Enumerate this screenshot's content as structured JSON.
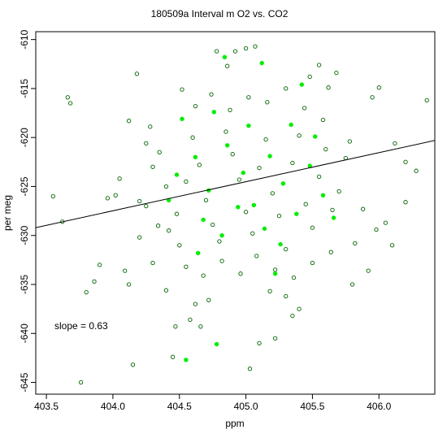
{
  "chart_data": {
    "type": "scatter",
    "title": "180509a   Interval m O2 vs. CO2",
    "xlabel": "ppm",
    "ylabel": "per meg",
    "xlim": [
      403.42,
      406.42
    ],
    "ylim": [
      -646.2,
      -609.2
    ],
    "xticks": [
      "403.5",
      "404.0",
      "404.5",
      "405.0",
      "405.5",
      "406.0"
    ],
    "yticks": [
      "-610",
      "-615",
      "-620",
      "-625",
      "-630",
      "-635",
      "-640",
      "-645"
    ],
    "annotation": "slope =  0.63",
    "fit_line": {
      "x": [
        403.42,
        406.42
      ],
      "y": [
        -629.2,
        -620.3
      ]
    },
    "grid": false,
    "colors": {
      "series_a": "#006400",
      "series_b": "#00ee00",
      "fit": "#000000"
    },
    "series": [
      {
        "marker": "open-circle",
        "color": "#006400",
        "points": [
          [
            403.55,
            -626.0
          ],
          [
            403.62,
            -628.6
          ],
          [
            403.66,
            -615.9
          ],
          [
            403.68,
            -616.5
          ],
          [
            403.76,
            -645.0
          ],
          [
            403.8,
            -635.8
          ],
          [
            403.86,
            -634.7
          ],
          [
            403.9,
            -633.0
          ],
          [
            403.96,
            -626.2
          ],
          [
            404.02,
            -625.9
          ],
          [
            404.05,
            -624.2
          ],
          [
            404.09,
            -633.6
          ],
          [
            404.12,
            -635.0
          ],
          [
            404.15,
            -643.2
          ],
          [
            404.18,
            -613.5
          ],
          [
            404.12,
            -618.3
          ],
          [
            404.2,
            -626.5
          ],
          [
            404.25,
            -620.6
          ],
          [
            404.3,
            -632.8
          ],
          [
            404.34,
            -629.0
          ],
          [
            404.4,
            -635.6
          ],
          [
            404.45,
            -642.4
          ],
          [
            404.47,
            -639.3
          ],
          [
            404.5,
            -631.0
          ],
          [
            404.52,
            -615.1
          ],
          [
            404.58,
            -638.6
          ],
          [
            404.62,
            -637.0
          ],
          [
            404.66,
            -639.3
          ],
          [
            404.72,
            -636.6
          ],
          [
            404.78,
            -611.2
          ],
          [
            404.86,
            -612.7
          ],
          [
            404.92,
            -611.2
          ],
          [
            405.0,
            -610.9
          ],
          [
            405.07,
            -610.7
          ],
          [
            405.03,
            -643.6
          ],
          [
            405.1,
            -641.0
          ],
          [
            405.18,
            -635.7
          ],
          [
            405.22,
            -640.5
          ],
          [
            405.3,
            -636.2
          ],
          [
            405.35,
            -638.2
          ],
          [
            405.4,
            -637.5
          ],
          [
            405.48,
            -613.8
          ],
          [
            405.55,
            -612.6
          ],
          [
            405.62,
            -614.9
          ],
          [
            405.68,
            -613.4
          ],
          [
            405.75,
            -622.1
          ],
          [
            405.82,
            -630.8
          ],
          [
            405.88,
            -627.3
          ],
          [
            405.95,
            -615.9
          ],
          [
            406.0,
            -614.9
          ],
          [
            406.05,
            -628.7
          ],
          [
            406.12,
            -620.6
          ],
          [
            406.2,
            -622.5
          ],
          [
            406.28,
            -623.4
          ],
          [
            406.36,
            -616.2
          ],
          [
            406.1,
            -631.0
          ],
          [
            405.98,
            -629.4
          ],
          [
            406.2,
            -626.6
          ],
          [
            405.92,
            -633.6
          ],
          [
            405.8,
            -635.0
          ],
          [
            404.25,
            -627.0
          ],
          [
            404.3,
            -623.0
          ],
          [
            404.35,
            -621.5
          ],
          [
            404.4,
            -625.0
          ],
          [
            404.42,
            -629.5
          ],
          [
            404.48,
            -627.8
          ],
          [
            404.55,
            -624.5
          ],
          [
            404.6,
            -620.0
          ],
          [
            404.65,
            -622.8
          ],
          [
            404.7,
            -626.4
          ],
          [
            404.75,
            -628.9
          ],
          [
            404.8,
            -630.6
          ],
          [
            404.85,
            -619.4
          ],
          [
            404.9,
            -621.7
          ],
          [
            404.95,
            -624.3
          ],
          [
            405.0,
            -627.6
          ],
          [
            405.05,
            -629.8
          ],
          [
            405.1,
            -623.1
          ],
          [
            405.15,
            -620.2
          ],
          [
            405.2,
            -625.7
          ],
          [
            405.25,
            -628.0
          ],
          [
            405.3,
            -631.4
          ],
          [
            405.35,
            -622.6
          ],
          [
            405.4,
            -619.8
          ],
          [
            405.45,
            -626.8
          ],
          [
            405.5,
            -629.2
          ],
          [
            405.55,
            -624.0
          ],
          [
            405.6,
            -621.2
          ],
          [
            405.65,
            -627.4
          ],
          [
            405.7,
            -625.5
          ],
          [
            404.55,
            -633.2
          ],
          [
            404.68,
            -634.1
          ],
          [
            404.82,
            -632.6
          ],
          [
            404.96,
            -633.9
          ],
          [
            405.08,
            -632.1
          ],
          [
            405.22,
            -633.5
          ],
          [
            405.36,
            -634.3
          ],
          [
            405.5,
            -632.8
          ],
          [
            405.64,
            -631.7
          ],
          [
            404.62,
            -616.8
          ],
          [
            404.74,
            -615.6
          ],
          [
            404.88,
            -617.2
          ],
          [
            405.02,
            -615.9
          ],
          [
            405.16,
            -616.4
          ],
          [
            405.3,
            -615.0
          ],
          [
            405.44,
            -617.0
          ],
          [
            405.58,
            -618.2
          ],
          [
            404.2,
            -630.2
          ],
          [
            404.28,
            -618.9
          ],
          [
            405.78,
            -620.4
          ]
        ]
      },
      {
        "marker": "filled-circle",
        "color": "#00ee00",
        "points": [
          [
            404.55,
            -642.7
          ],
          [
            404.78,
            -641.1
          ],
          [
            404.84,
            -611.8
          ],
          [
            405.12,
            -612.4
          ],
          [
            405.42,
            -614.6
          ],
          [
            404.62,
            -622.0
          ],
          [
            404.72,
            -625.4
          ],
          [
            404.86,
            -620.8
          ],
          [
            404.98,
            -623.6
          ],
          [
            405.06,
            -626.9
          ],
          [
            405.18,
            -621.9
          ],
          [
            405.28,
            -624.7
          ],
          [
            405.38,
            -627.8
          ],
          [
            405.48,
            -622.9
          ],
          [
            405.58,
            -625.9
          ],
          [
            404.68,
            -628.4
          ],
          [
            404.82,
            -630.0
          ],
          [
            404.94,
            -627.1
          ],
          [
            405.14,
            -629.3
          ],
          [
            405.26,
            -630.9
          ],
          [
            404.48,
            -623.8
          ],
          [
            404.52,
            -618.1
          ],
          [
            405.34,
            -618.7
          ],
          [
            405.52,
            -619.9
          ],
          [
            405.66,
            -628.2
          ],
          [
            404.42,
            -626.4
          ],
          [
            404.76,
            -617.4
          ],
          [
            405.02,
            -618.8
          ],
          [
            405.22,
            -633.9
          ],
          [
            404.64,
            -631.8
          ]
        ]
      }
    ]
  }
}
